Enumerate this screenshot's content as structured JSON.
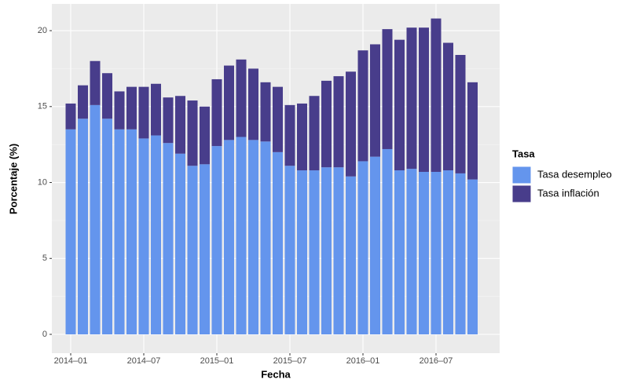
{
  "chart_data": {
    "type": "stacked-bar",
    "x_label": "Fecha",
    "y_label": "Porcentaje (%)",
    "categories": [
      "2014–01",
      null,
      null,
      null,
      null,
      null,
      "2014–07",
      null,
      null,
      null,
      null,
      null,
      "2015–01",
      null,
      null,
      null,
      null,
      null,
      "2015–07",
      null,
      null,
      null,
      null,
      null,
      "2016–01",
      null,
      null,
      null,
      null,
      null,
      "2016–07",
      null,
      null,
      null
    ],
    "series": [
      {
        "name": "Tasa desempleo",
        "color": "#6495ed",
        "values": [
          13.5,
          14.2,
          15.1,
          14.2,
          13.5,
          13.5,
          12.9,
          13.1,
          12.6,
          11.9,
          11.1,
          11.2,
          12.4,
          12.8,
          13.0,
          12.8,
          12.7,
          12.0,
          11.1,
          10.8,
          10.8,
          11.0,
          11.0,
          10.4,
          11.4,
          11.7,
          12.2,
          10.8,
          10.9,
          10.7,
          10.7,
          10.8,
          10.6,
          10.2
        ]
      },
      {
        "name": "Tasa inflación",
        "color": "#483d8b",
        "values": [
          1.7,
          2.2,
          2.9,
          3.0,
          2.5,
          2.8,
          3.4,
          3.4,
          3.0,
          3.8,
          4.3,
          3.8,
          4.4,
          4.9,
          5.1,
          4.7,
          3.9,
          4.3,
          4.0,
          4.4,
          4.9,
          5.7,
          6.0,
          6.9,
          7.3,
          7.4,
          7.9,
          8.6,
          9.3,
          9.5,
          10.1,
          8.4,
          7.8,
          6.4
        ]
      }
    ],
    "legend_title": "Tasa",
    "ylim": [
      -1.24,
      21.76
    ],
    "yticks": [
      0,
      5,
      10,
      15,
      20
    ],
    "grid": true
  }
}
